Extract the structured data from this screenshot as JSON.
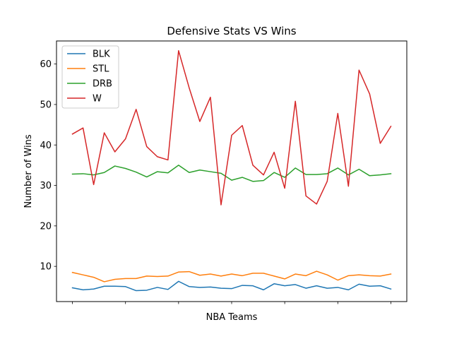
{
  "chart_data": {
    "type": "line",
    "title": "Defensive Stats VS Wins",
    "xlabel": "NBA Teams",
    "ylabel": "Number of Wins",
    "ylim": [
      1.3,
      65.7
    ],
    "yticks": [
      10,
      20,
      30,
      40,
      50,
      60
    ],
    "x": [
      0,
      1,
      2,
      3,
      4,
      5,
      6,
      7,
      8,
      9,
      10,
      11,
      12,
      13,
      14,
      15,
      16,
      17,
      18,
      19,
      20,
      21,
      22,
      23,
      24,
      25,
      26,
      27,
      28,
      29,
      30
    ],
    "xticks": [
      0,
      5,
      10,
      15,
      20,
      25,
      30
    ],
    "grid": false,
    "legend_position": "top-left",
    "series": [
      {
        "name": "BLK",
        "color": "#1f77b4",
        "values": [
          4.7,
          4.2,
          4.4,
          5.1,
          5.1,
          5.0,
          4.0,
          4.1,
          4.8,
          4.3,
          6.3,
          5.0,
          4.8,
          4.9,
          4.6,
          4.5,
          5.3,
          5.2,
          4.2,
          5.7,
          5.2,
          5.5,
          4.6,
          5.2,
          4.6,
          4.8,
          4.2,
          5.6,
          5.1,
          5.2,
          4.4
        ]
      },
      {
        "name": "STL",
        "color": "#ff7f0e",
        "values": [
          8.5,
          7.9,
          7.3,
          6.2,
          6.8,
          7.0,
          7.0,
          7.6,
          7.5,
          7.6,
          8.6,
          8.7,
          7.8,
          8.1,
          7.6,
          8.1,
          7.7,
          8.3,
          8.3,
          7.6,
          6.9,
          8.1,
          7.7,
          8.8,
          7.9,
          6.6,
          7.7,
          7.9,
          7.7,
          7.6,
          8.1
        ]
      },
      {
        "name": "DRB",
        "color": "#2ca02c",
        "values": [
          32.8,
          32.9,
          32.6,
          33.2,
          34.8,
          34.2,
          33.3,
          32.1,
          33.4,
          33.1,
          35.0,
          33.2,
          33.8,
          33.4,
          33.0,
          31.3,
          32.0,
          31.0,
          31.2,
          33.2,
          32.0,
          34.3,
          32.7,
          32.7,
          32.9,
          34.3,
          32.6,
          34.0,
          32.4,
          32.6,
          32.9
        ]
      },
      {
        "name": "W",
        "color": "#d62728",
        "values": [
          42.7,
          44.2,
          30.2,
          43.0,
          38.3,
          41.5,
          48.8,
          39.6,
          37.1,
          36.3,
          63.3,
          54.1,
          45.8,
          51.8,
          25.2,
          42.4,
          44.8,
          35.0,
          32.6,
          38.2,
          29.3,
          50.8,
          27.4,
          25.4,
          31.0,
          47.8,
          29.8,
          58.5,
          52.6,
          40.4,
          44.6
        ]
      }
    ]
  }
}
